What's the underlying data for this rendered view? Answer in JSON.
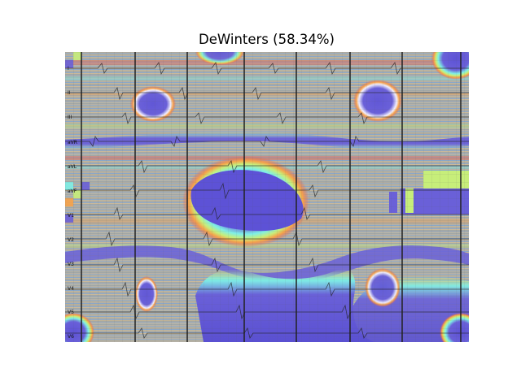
{
  "figure": {
    "title": "DeWinters (58.34%)"
  },
  "ecg": {
    "lead_labels": [
      "I",
      "II",
      "III",
      "aVR",
      "aVL",
      "aVF",
      "V1",
      "V2",
      "V3",
      "V4",
      "V5",
      "V6"
    ],
    "overlay": "saliency heatmap (jet colormap) with contour banding over 12-lead ECG grid"
  },
  "colors": {
    "blue": "#6a60d8",
    "deep_blue": "#3b2ed0",
    "cyan": "#7ff0e6",
    "yellow_green": "#c7ee7a",
    "orange": "#f6a24a",
    "red": "#e8534b",
    "gray_band": "#a8a8a8"
  }
}
